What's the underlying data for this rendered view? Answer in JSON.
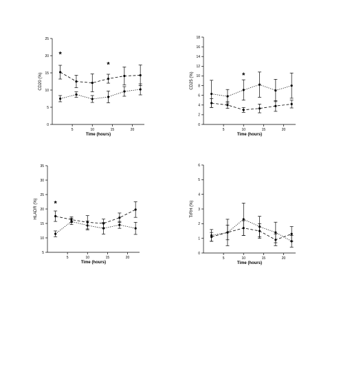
{
  "chart_data": [
    {
      "type": "line",
      "ylabel": "CD20 (%)",
      "xlabel": "Time (hours)",
      "xlim": [
        0,
        23
      ],
      "ylim": [
        0,
        25
      ],
      "xticks": [
        5,
        10,
        15,
        20
      ],
      "yticks": [
        0,
        5,
        10,
        15,
        20,
        25
      ],
      "annotations": [
        {
          "text": "*",
          "x": 2,
          "y": 20.5
        },
        {
          "text": "*",
          "x": 14,
          "y": 17.5
        }
      ],
      "series": [
        {
          "style": "dashed",
          "x": [
            2,
            6,
            10,
            14,
            18,
            22
          ],
          "y": [
            15.2,
            12.5,
            12.1,
            13.3,
            14.1,
            14.3
          ],
          "err": [
            2.0,
            1.8,
            2.6,
            1.3,
            2.6,
            3.0
          ]
        },
        {
          "style": "dotted",
          "x": [
            2,
            6,
            10,
            14,
            18,
            22
          ],
          "y": [
            7.5,
            8.7,
            7.4,
            8.0,
            9.6,
            10.2
          ],
          "err": [
            0.9,
            0.8,
            1.0,
            1.7,
            1.4,
            1.6
          ]
        }
      ]
    },
    {
      "type": "line",
      "ylabel": "CD25 (%)",
      "xlabel": "Time (hours)",
      "xlim": [
        0,
        23
      ],
      "ylim": [
        0,
        18
      ],
      "xticks": [
        5,
        10,
        15,
        20
      ],
      "yticks": [
        0,
        2,
        4,
        6,
        8,
        10,
        12,
        14,
        16,
        18
      ],
      "annotations": [
        {
          "text": "*",
          "x": 10,
          "y": 10.2
        }
      ],
      "series": [
        {
          "style": "dotted",
          "x": [
            2,
            6,
            10,
            14,
            18,
            22
          ],
          "y": [
            6.3,
            5.8,
            7.1,
            8.2,
            7.0,
            8.0
          ],
          "err": [
            2.8,
            1.4,
            2.1,
            2.6,
            2.3,
            2.6
          ]
        },
        {
          "style": "dashed",
          "x": [
            2,
            6,
            10,
            14,
            18,
            22
          ],
          "y": [
            4.4,
            4.0,
            3.0,
            3.3,
            3.8,
            4.2
          ],
          "err": [
            0.9,
            0.7,
            0.5,
            0.9,
            1.1,
            0.8
          ]
        }
      ]
    },
    {
      "type": "line",
      "ylabel": "HLADR (%)",
      "xlabel": "Time (hours)",
      "xlim": [
        0,
        23
      ],
      "ylim": [
        5,
        35
      ],
      "xticks": [
        5,
        10,
        15,
        20
      ],
      "yticks": [
        5,
        10,
        15,
        20,
        25,
        30,
        35
      ],
      "annotations": [
        {
          "text": "*",
          "x": 2,
          "y": 22
        }
      ],
      "series": [
        {
          "style": "dashed",
          "x": [
            2,
            6,
            10,
            14,
            18,
            22
          ],
          "y": [
            17.5,
            16.3,
            15.4,
            15.0,
            17.0,
            19.8
          ],
          "err": [
            1.8,
            1.0,
            2.3,
            1.5,
            1.6,
            2.7
          ]
        },
        {
          "style": "dotted",
          "x": [
            2,
            6,
            10,
            14,
            18,
            22
          ],
          "y": [
            11.4,
            15.7,
            14.3,
            13.3,
            14.5,
            13.3
          ],
          "err": [
            1.0,
            1.1,
            1.5,
            2.0,
            1.2,
            2.1
          ]
        }
      ]
    },
    {
      "type": "line",
      "ylabel": "TrRH (%)",
      "xlabel": "Time (hours)",
      "xlim": [
        0,
        23
      ],
      "ylim": [
        0,
        6
      ],
      "xticks": [
        5,
        10,
        15,
        20
      ],
      "yticks": [
        0,
        1,
        2,
        3,
        4,
        5,
        6
      ],
      "annotations": [],
      "series": [
        {
          "style": "dotted",
          "x": [
            2,
            6,
            10,
            14,
            18,
            22
          ],
          "y": [
            1.2,
            1.4,
            2.3,
            1.8,
            1.4,
            0.8
          ],
          "err": [
            0.4,
            0.9,
            1.1,
            0.7,
            0.7,
            0.4
          ]
        },
        {
          "style": "dashed",
          "x": [
            2,
            6,
            10,
            14,
            18,
            22
          ],
          "y": [
            1.1,
            1.4,
            1.7,
            1.5,
            0.9,
            1.3
          ],
          "err": [
            0.3,
            0.5,
            0.5,
            0.5,
            0.4,
            0.5
          ]
        }
      ]
    }
  ]
}
